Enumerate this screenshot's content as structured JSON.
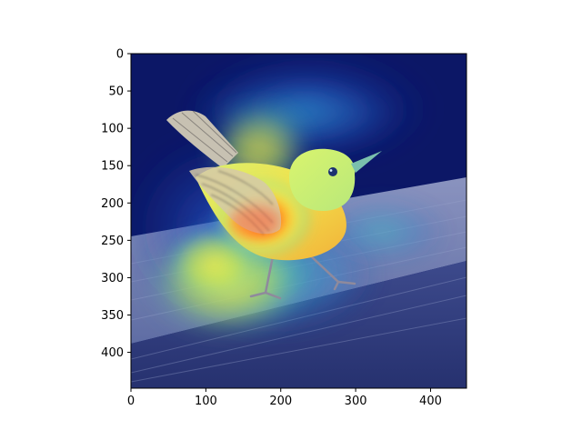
{
  "figure": {
    "layers": [
      "bird-photo",
      "attention-heatmap"
    ],
    "colormap": "jet",
    "colors": {
      "background": "#ffffff",
      "heat_low": "#0b1a66",
      "heat_mid": "#35c6d9",
      "heat_high": "#f5332a",
      "bird_body": "#f2d34a",
      "bird_wing": "#c9c2b4",
      "railing": "#6f7ca8"
    }
  },
  "chart_data": {
    "type": "heatmap",
    "xlim": [
      0,
      448
    ],
    "ylim": [
      448,
      0
    ],
    "x_ticks": [
      0,
      100,
      200,
      300,
      400
    ],
    "y_ticks": [
      0,
      50,
      100,
      150,
      200,
      250,
      300,
      350,
      400
    ],
    "x_tick_labels": [
      "0",
      "100",
      "200",
      "300",
      "400"
    ],
    "y_tick_labels": [
      "0",
      "50",
      "100",
      "150",
      "200",
      "250",
      "300",
      "350",
      "400"
    ]
  }
}
